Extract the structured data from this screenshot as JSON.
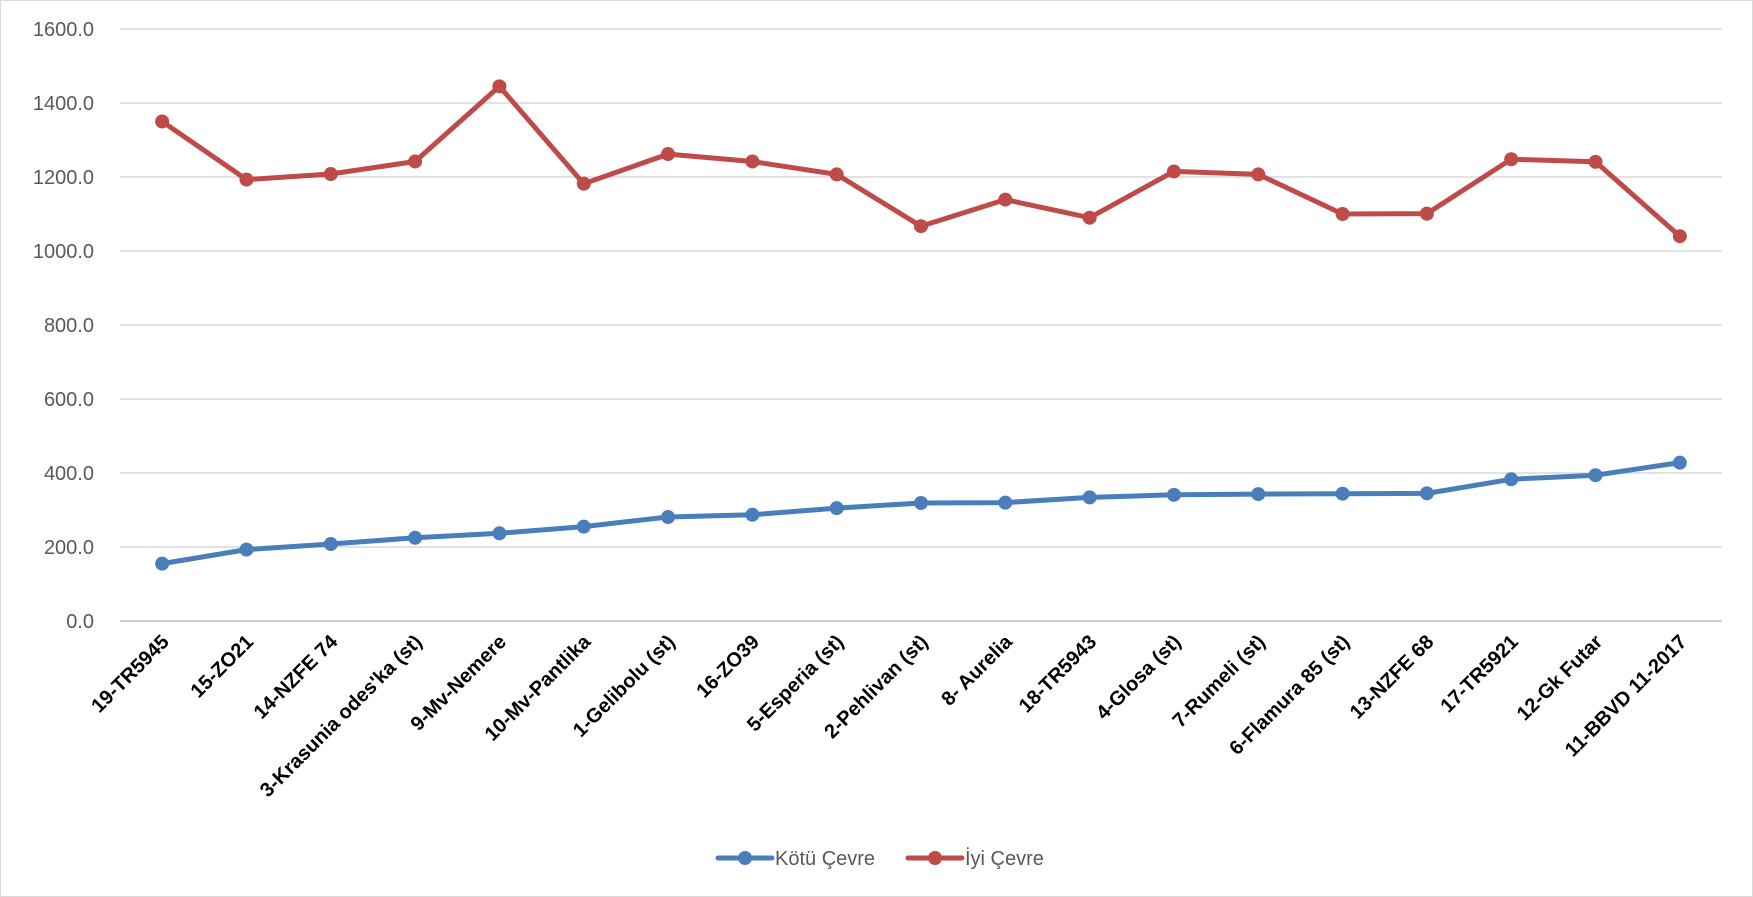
{
  "chart_data": {
    "type": "line",
    "title": "",
    "xlabel": "",
    "ylabel": "",
    "ylim": [
      0,
      1600
    ],
    "ytick_step": 200,
    "ytick_labels": [
      "0.0",
      "200.0",
      "400.0",
      "600.0",
      "800.0",
      "1000.0",
      "1200.0",
      "1400.0",
      "1600.0"
    ],
    "grid": true,
    "legend_position": "bottom",
    "categories": [
      "19-TR5945",
      "15-ZO21",
      "14-NZFE 74",
      "3-Krasunia odes'ka (st)",
      "9-Mv-Nemere",
      "10-Mv-Pantlika",
      "1-Gelibolu (st)",
      "16-ZO39",
      "5-Esperia (st)",
      "2-Pehlivan (st)",
      "8- Aurelia",
      "18-TR5943",
      "4-Glosa (st)",
      "7-Rumeli (st)",
      "6-Flamura 85 (st)",
      "13-NZFE 68",
      "17-TR5921",
      "12-Gk Futar",
      "11-BBVD 11-2017"
    ],
    "series": [
      {
        "name": "Kötü Çevre",
        "color": "#4a7ebb",
        "values": [
          155,
          193,
          208,
          225,
          237,
          255,
          281,
          287,
          305,
          319,
          320,
          334,
          341,
          343,
          344,
          345,
          383,
          394,
          428
        ]
      },
      {
        "name": "İyi Çevre",
        "color": "#be4b48",
        "values": [
          1350,
          1193,
          1208,
          1242,
          1445,
          1182,
          1262,
          1242,
          1207,
          1067,
          1139,
          1090,
          1215,
          1207,
          1100,
          1101,
          1248,
          1241,
          1040
        ]
      }
    ]
  }
}
